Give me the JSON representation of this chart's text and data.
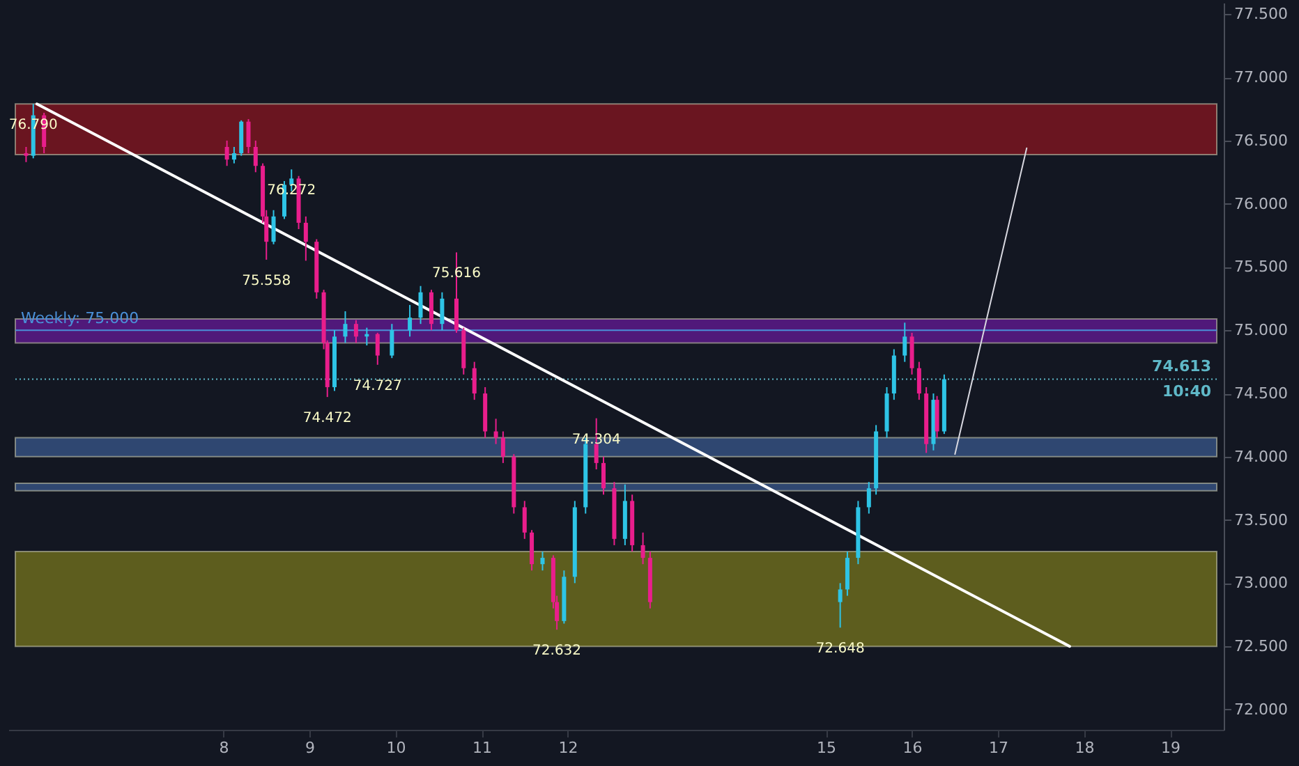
{
  "chart_data": {
    "type": "candlestick",
    "x": [
      "--06-05T17:00",
      "--06-05T19:00",
      "--06-05T22:00",
      "--06-08T01:00",
      "--06-08T03:00",
      "--06-08T05:00",
      "--06-08T07:00",
      "--06-08T09:00",
      "--06-08T11:00",
      "--06-08T12:00",
      "--06-08T14:00",
      "--06-08T17:00",
      "--06-08T19:00",
      "--06-08T21:00",
      "--06-08T23:00",
      "--06-09T02:00",
      "--06-09T04:00",
      "--06-09T05:00",
      "--06-09T07:00",
      "--06-09T10:00",
      "--06-09T13:00",
      "--06-09T16:00",
      "--06-09T19:00",
      "--06-09T23:00",
      "--06-10T04:00",
      "--06-10T07:00",
      "--06-10T10:00",
      "--06-10T13:00",
      "--06-10T17:00",
      "--06-10T19:00",
      "--06-10T22:00",
      "--06-11T01:00",
      "--06-11T04:00",
      "--06-11T06:00",
      "--06-11T09:00",
      "--06-11T12:00",
      "--06-11T14:00",
      "--06-11T17:00",
      "--06-11T20:00",
      "--06-11T21:00",
      "--06-11T23:00",
      "--06-12T02:00",
      "--06-12T05:00",
      "--06-12T08:00",
      "--06-12T10:00",
      "--06-12T13:00",
      "--06-12T16:00",
      "--06-12T18:00",
      "--06-12T21:00",
      "--06-12T23:00",
      "--06-15T04:00",
      "--06-15T06:00",
      "--06-15T09:00",
      "--06-15T12:00",
      "--06-15T14:00",
      "--06-15T17:00",
      "--06-15T19:00",
      "--06-15T22:00",
      "--06-16T00:00",
      "--06-16T02:00",
      "--06-16T04:00",
      "--06-16T06:00",
      "--06-16T07:00",
      "--06-16T09:00"
    ],
    "ohlc": [
      [
        76.4,
        76.45,
        76.33,
        76.38
      ],
      [
        76.38,
        76.79,
        76.36,
        76.7
      ],
      [
        76.7,
        76.72,
        76.4,
        76.45
      ],
      [
        76.45,
        76.5,
        76.3,
        76.35
      ],
      [
        76.35,
        76.45,
        76.32,
        76.4
      ],
      [
        76.4,
        76.66,
        76.38,
        76.65
      ],
      [
        76.65,
        76.67,
        76.4,
        76.45
      ],
      [
        76.45,
        76.5,
        76.25,
        76.3
      ],
      [
        76.3,
        76.32,
        75.85,
        75.9
      ],
      [
        75.9,
        75.95,
        75.558,
        75.7
      ],
      [
        75.7,
        75.95,
        75.68,
        75.9
      ],
      [
        75.9,
        76.18,
        75.88,
        76.15
      ],
      [
        76.15,
        76.272,
        76.1,
        76.2
      ],
      [
        76.2,
        76.22,
        75.8,
        75.85
      ],
      [
        75.85,
        75.9,
        75.55,
        75.7
      ],
      [
        75.7,
        75.72,
        75.25,
        75.3
      ],
      [
        75.3,
        75.32,
        74.85,
        74.9
      ],
      [
        74.9,
        74.92,
        74.472,
        74.55
      ],
      [
        74.55,
        75.0,
        74.52,
        74.95
      ],
      [
        74.95,
        75.15,
        74.9,
        75.05
      ],
      [
        75.05,
        75.08,
        74.9,
        74.95
      ],
      [
        74.95,
        75.02,
        74.88,
        74.97
      ],
      [
        74.97,
        74.98,
        74.727,
        74.8
      ],
      [
        74.8,
        75.05,
        74.78,
        75.0
      ],
      [
        75.0,
        75.2,
        74.95,
        75.1
      ],
      [
        75.1,
        75.35,
        75.05,
        75.3
      ],
      [
        75.3,
        75.32,
        75.0,
        75.05
      ],
      [
        75.05,
        75.3,
        75.0,
        75.25
      ],
      [
        75.25,
        75.616,
        74.98,
        75.0
      ],
      [
        75.0,
        75.02,
        74.65,
        74.7
      ],
      [
        74.7,
        74.75,
        74.45,
        74.5
      ],
      [
        74.5,
        74.55,
        74.15,
        74.2
      ],
      [
        74.2,
        74.3,
        74.1,
        74.15
      ],
      [
        74.15,
        74.2,
        73.95,
        74.0
      ],
      [
        74.0,
        74.02,
        73.55,
        73.6
      ],
      [
        73.6,
        73.65,
        73.35,
        73.4
      ],
      [
        73.4,
        73.42,
        73.1,
        73.15
      ],
      [
        73.15,
        73.25,
        73.1,
        73.2
      ],
      [
        73.2,
        73.22,
        72.8,
        72.85
      ],
      [
        72.85,
        72.9,
        72.632,
        72.7
      ],
      [
        72.7,
        73.1,
        72.68,
        73.05
      ],
      [
        73.05,
        73.65,
        73.0,
        73.6
      ],
      [
        73.6,
        74.15,
        73.55,
        74.1
      ],
      [
        74.1,
        74.304,
        73.9,
        73.95
      ],
      [
        73.95,
        74.0,
        73.7,
        73.75
      ],
      [
        73.75,
        73.8,
        73.3,
        73.35
      ],
      [
        73.35,
        73.78,
        73.3,
        73.65
      ],
      [
        73.65,
        73.7,
        73.25,
        73.3
      ],
      [
        73.3,
        73.4,
        73.15,
        73.2
      ],
      [
        73.2,
        73.25,
        72.8,
        72.85
      ],
      [
        72.85,
        73.0,
        72.648,
        72.95
      ],
      [
        72.95,
        73.25,
        72.9,
        73.2
      ],
      [
        73.2,
        73.65,
        73.15,
        73.6
      ],
      [
        73.6,
        73.8,
        73.55,
        73.75
      ],
      [
        73.75,
        74.25,
        73.7,
        74.2
      ],
      [
        74.2,
        74.55,
        74.15,
        74.5
      ],
      [
        74.5,
        74.85,
        74.45,
        74.8
      ],
      [
        74.8,
        75.06,
        74.75,
        74.95
      ],
      [
        74.95,
        74.98,
        74.65,
        74.7
      ],
      [
        74.7,
        74.75,
        74.45,
        74.5
      ],
      [
        74.5,
        74.55,
        74.03,
        74.1
      ],
      [
        74.1,
        74.5,
        74.05,
        74.45
      ],
      [
        74.45,
        74.48,
        74.15,
        74.2
      ],
      [
        74.2,
        74.65,
        74.18,
        74.613
      ]
    ],
    "colors": [
      "#e91e8c",
      "#2ec4e6",
      "#e91e8c",
      "#e91e8c",
      "#2ec4e6",
      "#2ec4e6",
      "#e91e8c",
      "#e91e8c",
      "#e91e8c",
      "#e91e8c",
      "#2ec4e6",
      "#2ec4e6",
      "#2ec4e6",
      "#e91e8c",
      "#e91e8c",
      "#e91e8c",
      "#e91e8c",
      "#e91e8c",
      "#2ec4e6",
      "#2ec4e6",
      "#e91e8c",
      "#2ec4e6",
      "#e91e8c",
      "#2ec4e6",
      "#2ec4e6",
      "#2ec4e6",
      "#e91e8c",
      "#2ec4e6",
      "#e91e8c",
      "#e91e8c",
      "#e91e8c",
      "#e91e8c",
      "#e91e8c",
      "#e91e8c",
      "#e91e8c",
      "#e91e8c",
      "#e91e8c",
      "#2ec4e6",
      "#e91e8c",
      "#e91e8c",
      "#2ec4e6",
      "#2ec4e6",
      "#2ec4e6",
      "#e91e8c",
      "#e91e8c",
      "#e91e8c",
      "#2ec4e6",
      "#e91e8c",
      "#e91e8c",
      "#e91e8c",
      "#2ec4e6",
      "#2ec4e6",
      "#2ec4e6",
      "#2ec4e6",
      "#2ec4e6",
      "#2ec4e6",
      "#2ec4e6",
      "#2ec4e6",
      "#e91e8c",
      "#e91e8c",
      "#e91e8c",
      "#2ec4e6",
      "#e91e8c",
      "#2ec4e6"
    ],
    "series": [
      {
        "type": "line",
        "x": [
          "--06-05T20:00",
          "--06-17T20:00"
        ],
        "values": [
          76.79,
          72.5
        ],
        "color": "#ffffff"
      },
      {
        "type": "line",
        "x": [
          "--06-16T12:00",
          "--06-17T08:00"
        ],
        "values": [
          74.02,
          76.44
        ],
        "color": "#d8d8e0"
      }
    ],
    "xlim": [
      "--06-05T14:00",
      "--06-19T13:00"
    ],
    "xticks": [
      {
        "value": "--06-08",
        "label": "8"
      },
      {
        "value": "--06-09",
        "label": "9"
      },
      {
        "value": "--06-10",
        "label": "10"
      },
      {
        "value": "--06-11",
        "label": "11"
      },
      {
        "value": "--06-12",
        "label": "12"
      },
      {
        "value": "--06-15",
        "label": "15"
      },
      {
        "value": "--06-16",
        "label": "16"
      },
      {
        "value": "--06-17",
        "label": "17"
      },
      {
        "value": "--06-18",
        "label": "18"
      },
      {
        "value": "--06-19",
        "label": "19"
      }
    ],
    "ylim": [
      71.84,
      77.59
    ],
    "yticks": [
      {
        "value": 72,
        "label": "72.000"
      },
      {
        "value": 72.5,
        "label": "72.500"
      },
      {
        "value": 73,
        "label": "73.000"
      },
      {
        "value": 73.5,
        "label": "73.500"
      },
      {
        "value": 74,
        "label": "74.000"
      },
      {
        "value": 74.5,
        "label": "74.500"
      },
      {
        "value": 75,
        "label": "75.000"
      },
      {
        "value": 75.5,
        "label": "75.500"
      },
      {
        "value": 76,
        "label": "76.000"
      },
      {
        "value": 76.5,
        "label": "76.500"
      },
      {
        "value": 77,
        "label": "77.000"
      },
      {
        "value": 77.5,
        "label": "77.500"
      }
    ],
    "bands": [
      {
        "axis": "y",
        "from": 76.39,
        "to": 76.79,
        "color": "#7a1520"
      },
      {
        "axis": "y",
        "from": 74.9,
        "to": 75.09,
        "color": "#5b1a8a"
      },
      {
        "axis": "y",
        "from": 74.0,
        "to": 74.15,
        "color": "#35507f"
      },
      {
        "axis": "y",
        "from": 73.73,
        "to": 73.79,
        "color": "#35507f"
      },
      {
        "axis": "y",
        "from": 72.5,
        "to": 73.25,
        "color": "#6b6a1e"
      }
    ],
    "ref_lines": [
      {
        "axis": "y",
        "value": 75,
        "label": "Weekly: 75.000",
        "color": "#4a90d9",
        "line_style": "solid"
      },
      {
        "axis": "y",
        "value": 74.613,
        "label": "74.613",
        "color": "#5fb8c8",
        "line_style": "dotted"
      }
    ],
    "annotations": [
      {
        "text": "76.790",
        "x": "--06-05T19:00",
        "y": 76.79
      },
      {
        "text": "76.272",
        "x": "--06-08T19:00",
        "y": 76.272
      },
      {
        "text": "75.558",
        "x": "--06-08T12:00",
        "y": 75.558
      },
      {
        "text": "74.472",
        "x": "--06-09T05:00",
        "y": 74.472
      },
      {
        "text": "74.727",
        "x": "--06-09T19:00",
        "y": 74.727
      },
      {
        "text": "75.616",
        "x": "--06-10T17:00",
        "y": 75.616
      },
      {
        "text": "74.304",
        "x": "--06-12T08:00",
        "y": 74.304
      },
      {
        "text": "72.632",
        "x": "--06-11T21:00",
        "y": 72.632
      },
      {
        "text": "72.648",
        "x": "--06-15T04:00",
        "y": 72.648
      },
      "10:40"
    ]
  }
}
